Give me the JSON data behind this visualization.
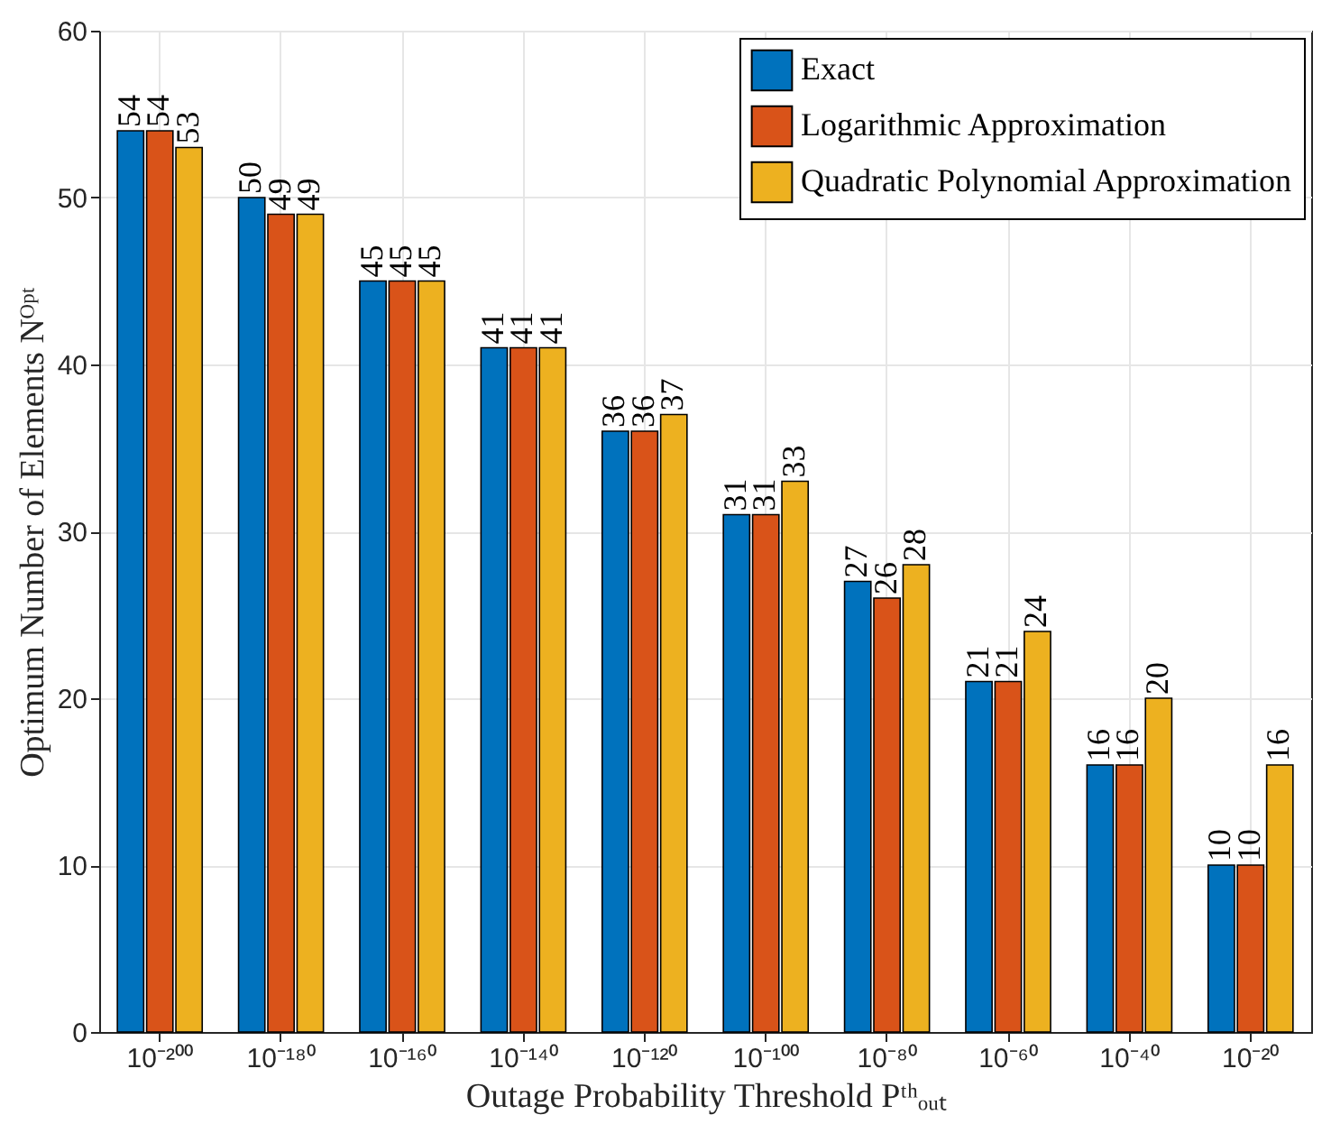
{
  "chart_data": {
    "type": "bar",
    "xlabel": "Outage Probability Threshold Pᵗʰₒᵤₜ",
    "ylabel": "Optimum Number of Elements Nᴼᵖᵗ",
    "categories": [
      "10⁻²⁰⁰",
      "10⁻¹⁸⁰",
      "10⁻¹⁶⁰",
      "10⁻¹⁴⁰",
      "10⁻¹²⁰",
      "10⁻¹⁰⁰",
      "10⁻⁸⁰",
      "10⁻⁶⁰",
      "10⁻⁴⁰",
      "10⁻²⁰"
    ],
    "series": [
      {
        "name": "Exact",
        "color": "#0072bd",
        "values": [
          54,
          50,
          45,
          41,
          36,
          31,
          27,
          21,
          16,
          10
        ]
      },
      {
        "name": "Logarithmic Approximation",
        "color": "#d95319",
        "values": [
          54,
          49,
          45,
          41,
          36,
          31,
          26,
          21,
          16,
          10
        ]
      },
      {
        "name": "Quadratic Polynomial Approximation",
        "color": "#edb120",
        "values": [
          53,
          49,
          45,
          41,
          37,
          33,
          28,
          24,
          20,
          16
        ]
      }
    ],
    "ylim": [
      0,
      60
    ],
    "yticks": [
      0,
      10,
      20,
      30,
      40,
      50,
      60
    ],
    "grid": true,
    "legend": "top right",
    "data_labels": true
  }
}
